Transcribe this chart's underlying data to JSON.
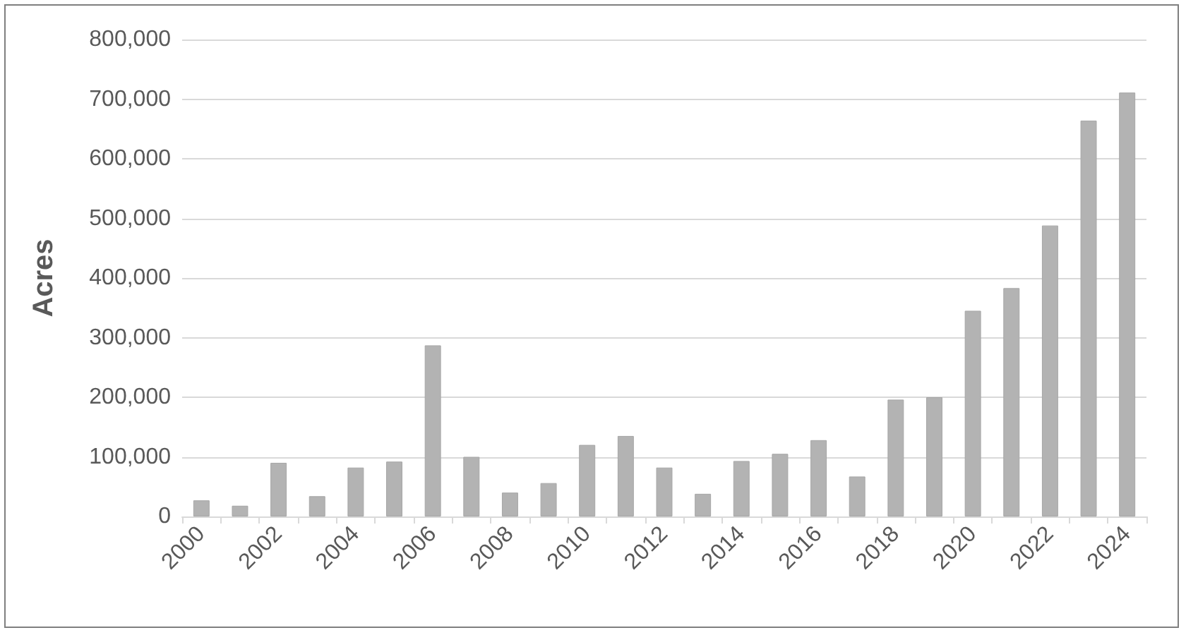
{
  "chart_data": {
    "type": "bar",
    "ylabel": "Acres",
    "categories": [
      "2000",
      null,
      "2002",
      null,
      "2004",
      null,
      "2006",
      null,
      "2008",
      null,
      "2010",
      null,
      "2012",
      null,
      "2014",
      null,
      "2016",
      null,
      "2018",
      null,
      "2020",
      null,
      "2022",
      null,
      "2024"
    ],
    "values": [
      27000,
      18000,
      90000,
      34000,
      82000,
      92000,
      287000,
      100000,
      40000,
      56000,
      120000,
      135000,
      82000,
      38000,
      93000,
      105000,
      128000,
      67000,
      196000,
      200000,
      345000,
      383000,
      488000,
      664000,
      711000
    ],
    "color": "#b3b3b3",
    "ylim": [
      0,
      800000
    ],
    "yticks": [
      {
        "value": 0,
        "label": "0"
      },
      {
        "value": 100000,
        "label": "100,000"
      },
      {
        "value": 200000,
        "label": "200,000"
      },
      {
        "value": 300000,
        "label": "300,000"
      },
      {
        "value": 400000,
        "label": "400,000"
      },
      {
        "value": 500000,
        "label": "500,000"
      },
      {
        "value": 600000,
        "label": "600,000"
      },
      {
        "value": 700000,
        "label": "700,000"
      },
      {
        "value": 800000,
        "label": "800,000"
      }
    ],
    "grid": "y"
  }
}
